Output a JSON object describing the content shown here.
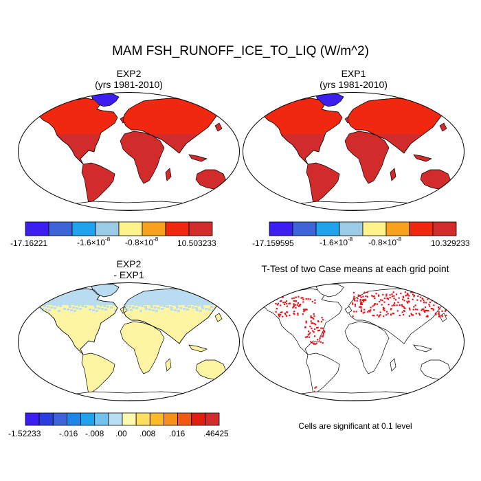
{
  "figure_title": "MAM FSH_RUNOFF_ICE_TO_LIQ (W/m^2)",
  "panels": {
    "exp2": {
      "title": "EXP2",
      "subtitle": "(yrs 1981-2010)",
      "colorbar": {
        "colors": [
          "#3c1ef0",
          "#3f63d9",
          "#1fa3ec",
          "#9ccbe6",
          "#fdf28c",
          "#f6a21c",
          "#f0280f",
          "#d12b2b"
        ],
        "min_label": "-17.16221",
        "tick_labels": [
          {
            "mant": "-1.6×10",
            "exp": "-8"
          },
          {
            "mant": "-0.8×10",
            "exp": "-8"
          }
        ],
        "max_label": "10.503233"
      }
    },
    "exp1": {
      "title": "EXP1",
      "subtitle": "(yrs 1981-2010)",
      "colorbar": {
        "colors": [
          "#3c1ef0",
          "#3f63d9",
          "#1fa3ec",
          "#9ccbe6",
          "#fdf28c",
          "#f6a21c",
          "#f0280f",
          "#d12b2b"
        ],
        "min_label": "-17.159595",
        "tick_labels": [
          {
            "mant": "-1.6×10",
            "exp": "-8"
          },
          {
            "mant": "-0.8×10",
            "exp": "-8"
          }
        ],
        "max_label": "10.329233"
      }
    },
    "diff": {
      "title": "EXP2",
      "subtitle": "- EXP1",
      "colorbar": {
        "colors": [
          "#3c1ef0",
          "#2b3fe0",
          "#3f63d9",
          "#1f86e8",
          "#1fa3ec",
          "#72c2ee",
          "#b7def2",
          "#fff9b0",
          "#fde060",
          "#fcbc2a",
          "#f6901c",
          "#f05a14",
          "#e01f0f",
          "#d12b2b"
        ],
        "labels": [
          "-1.52233",
          "-.016",
          "-.008",
          ".00",
          ".008",
          ".016",
          ".46425"
        ]
      }
    },
    "ttest": {
      "title": "T-Test of two Case means at each grid point",
      "note": "Cells are significant at 0.1 level"
    }
  },
  "map_fill_colors": {
    "land_main": "#d12b2b",
    "land_bright": "#f0280f",
    "greenland": "#3c1ef0",
    "diff_land": "#fdf5a3",
    "diff_high_lat": "#b9dcf0",
    "significant_cells": "#e8141a"
  }
}
